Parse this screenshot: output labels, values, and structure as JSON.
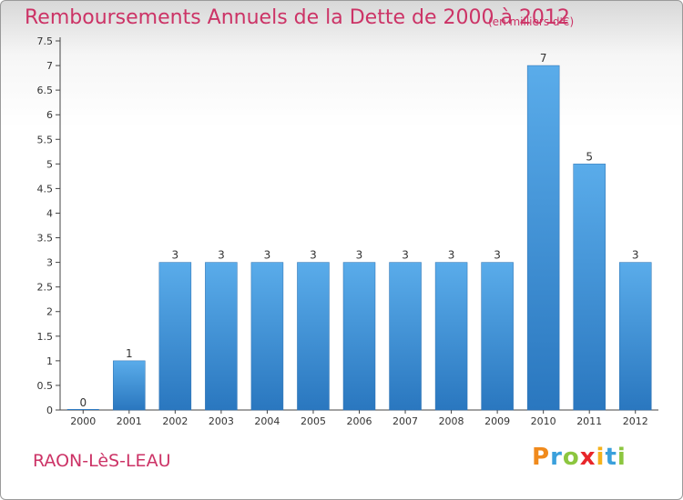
{
  "chart_data": {
    "type": "bar",
    "title": "Remboursements Annuels de la Dette de 2000 à 2012",
    "unit": "(en milliers d'€)",
    "categories": [
      "2000",
      "2001",
      "2002",
      "2003",
      "2004",
      "2005",
      "2006",
      "2007",
      "2008",
      "2009",
      "2010",
      "2011",
      "2012"
    ],
    "values": [
      0,
      1,
      3,
      3,
      3,
      3,
      3,
      3,
      3,
      3,
      7,
      5,
      3
    ],
    "ylim": [
      0,
      7.5
    ],
    "yticks": [
      "0",
      "0.5",
      "1",
      "1.5",
      "2",
      "2.5",
      "3",
      "3.5",
      "4",
      "4.5",
      "5",
      "5.5",
      "6",
      "6.5",
      "7",
      "7.5"
    ],
    "grid": false,
    "bar_color": "#4d9ee0",
    "bar_color_dark": "#2a77bf"
  },
  "commune": "RAON-LèS-LEAU",
  "logo": {
    "letters": [
      "P",
      "r",
      "o",
      "x",
      "i",
      "t",
      "i"
    ],
    "colors": [
      "#f08a1c",
      "#3aa0dc",
      "#8cc63f",
      "#e8262a",
      "#f5b21b",
      "#3aa0dc",
      "#8cc63f"
    ]
  },
  "colors": {
    "title": "#cc3366",
    "axis": "#444444"
  }
}
